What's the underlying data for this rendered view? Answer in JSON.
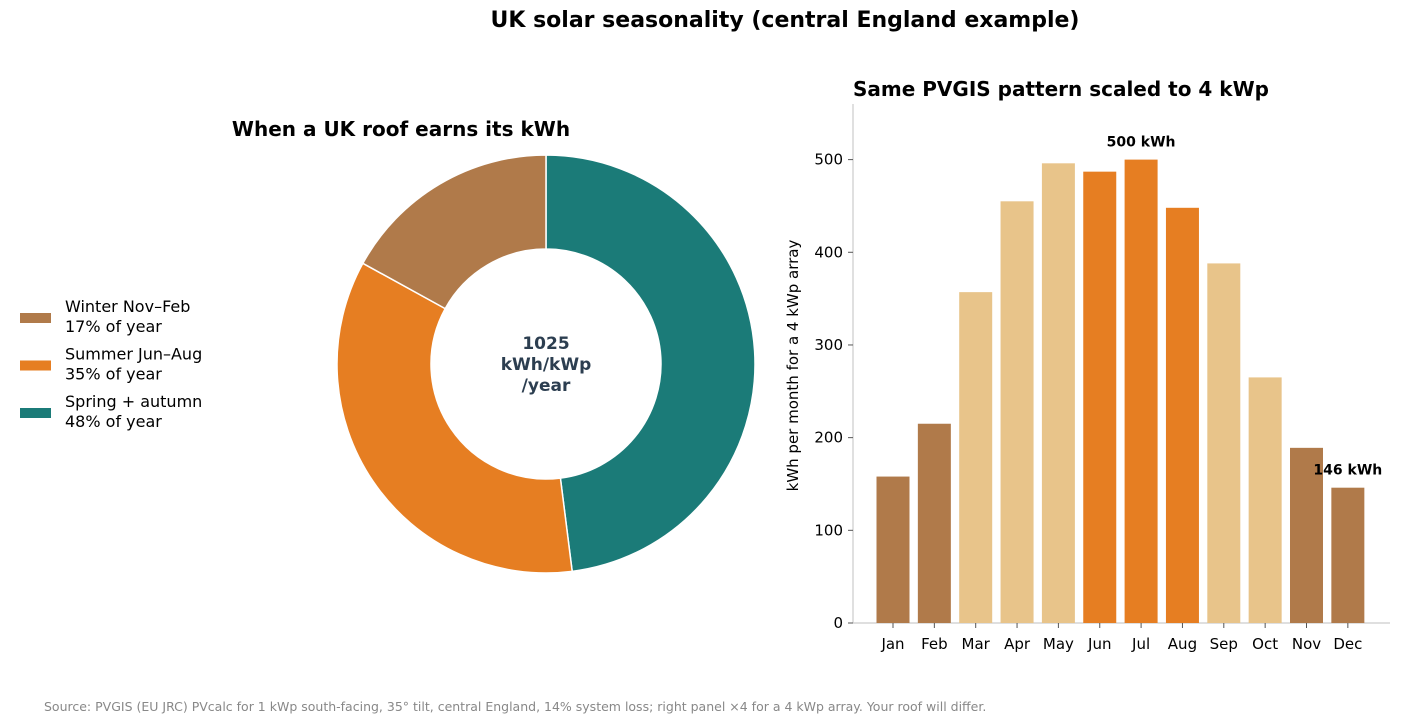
{
  "suptitle": "UK solar seasonality (central England example)",
  "footer": "Source: PVGIS (EU JRC) PVcalc for 1 kWp south-facing, 35° tilt, central England, 14% system loss; right panel ×4 for a 4 kWp array. Your roof will differ.",
  "colors": {
    "winter": "#b07a4a",
    "summer": "#e67e22",
    "shoulder_pie": "#1b7b78",
    "shoulder_bar": "#e8c48a",
    "center_text": "#2c3e50",
    "axis": "#cccccc"
  },
  "chart_data": [
    {
      "type": "pie",
      "title": "When a UK roof earns its kWh",
      "center_label": [
        "1025",
        "kWh/kWp",
        "/year"
      ],
      "legend_position": "left",
      "slices": [
        {
          "label": "Winter Nov–Feb",
          "sublabel": "17% of year",
          "value": 17,
          "color": "#b07a4a"
        },
        {
          "label": "Summer Jun–Aug",
          "sublabel": "35% of year",
          "value": 35,
          "color": "#e67e22"
        },
        {
          "label": "Spring + autumn",
          "sublabel": "48% of year",
          "value": 48,
          "color": "#1b7b78"
        }
      ]
    },
    {
      "type": "bar",
      "title": "Same PVGIS pattern scaled to 4 kWp",
      "ylabel": "kWh per month for a 4 kWp array",
      "xlabel": "",
      "ylim": [
        0,
        560
      ],
      "yticks": [
        0,
        100,
        200,
        300,
        400,
        500
      ],
      "grid": false,
      "categories": [
        "Jan",
        "Feb",
        "Mar",
        "Apr",
        "May",
        "Jun",
        "Jul",
        "Aug",
        "Sep",
        "Oct",
        "Nov",
        "Dec"
      ],
      "values": [
        158,
        215,
        357,
        455,
        496,
        487,
        500,
        448,
        388,
        265,
        189,
        146
      ],
      "seasons": [
        "winter",
        "winter",
        "shoulder",
        "shoulder",
        "shoulder",
        "summer",
        "summer",
        "summer",
        "shoulder",
        "shoulder",
        "winter",
        "winter"
      ],
      "annotations": [
        {
          "index": 6,
          "text": "500 kWh"
        },
        {
          "index": 11,
          "text": "146 kWh"
        }
      ]
    }
  ]
}
